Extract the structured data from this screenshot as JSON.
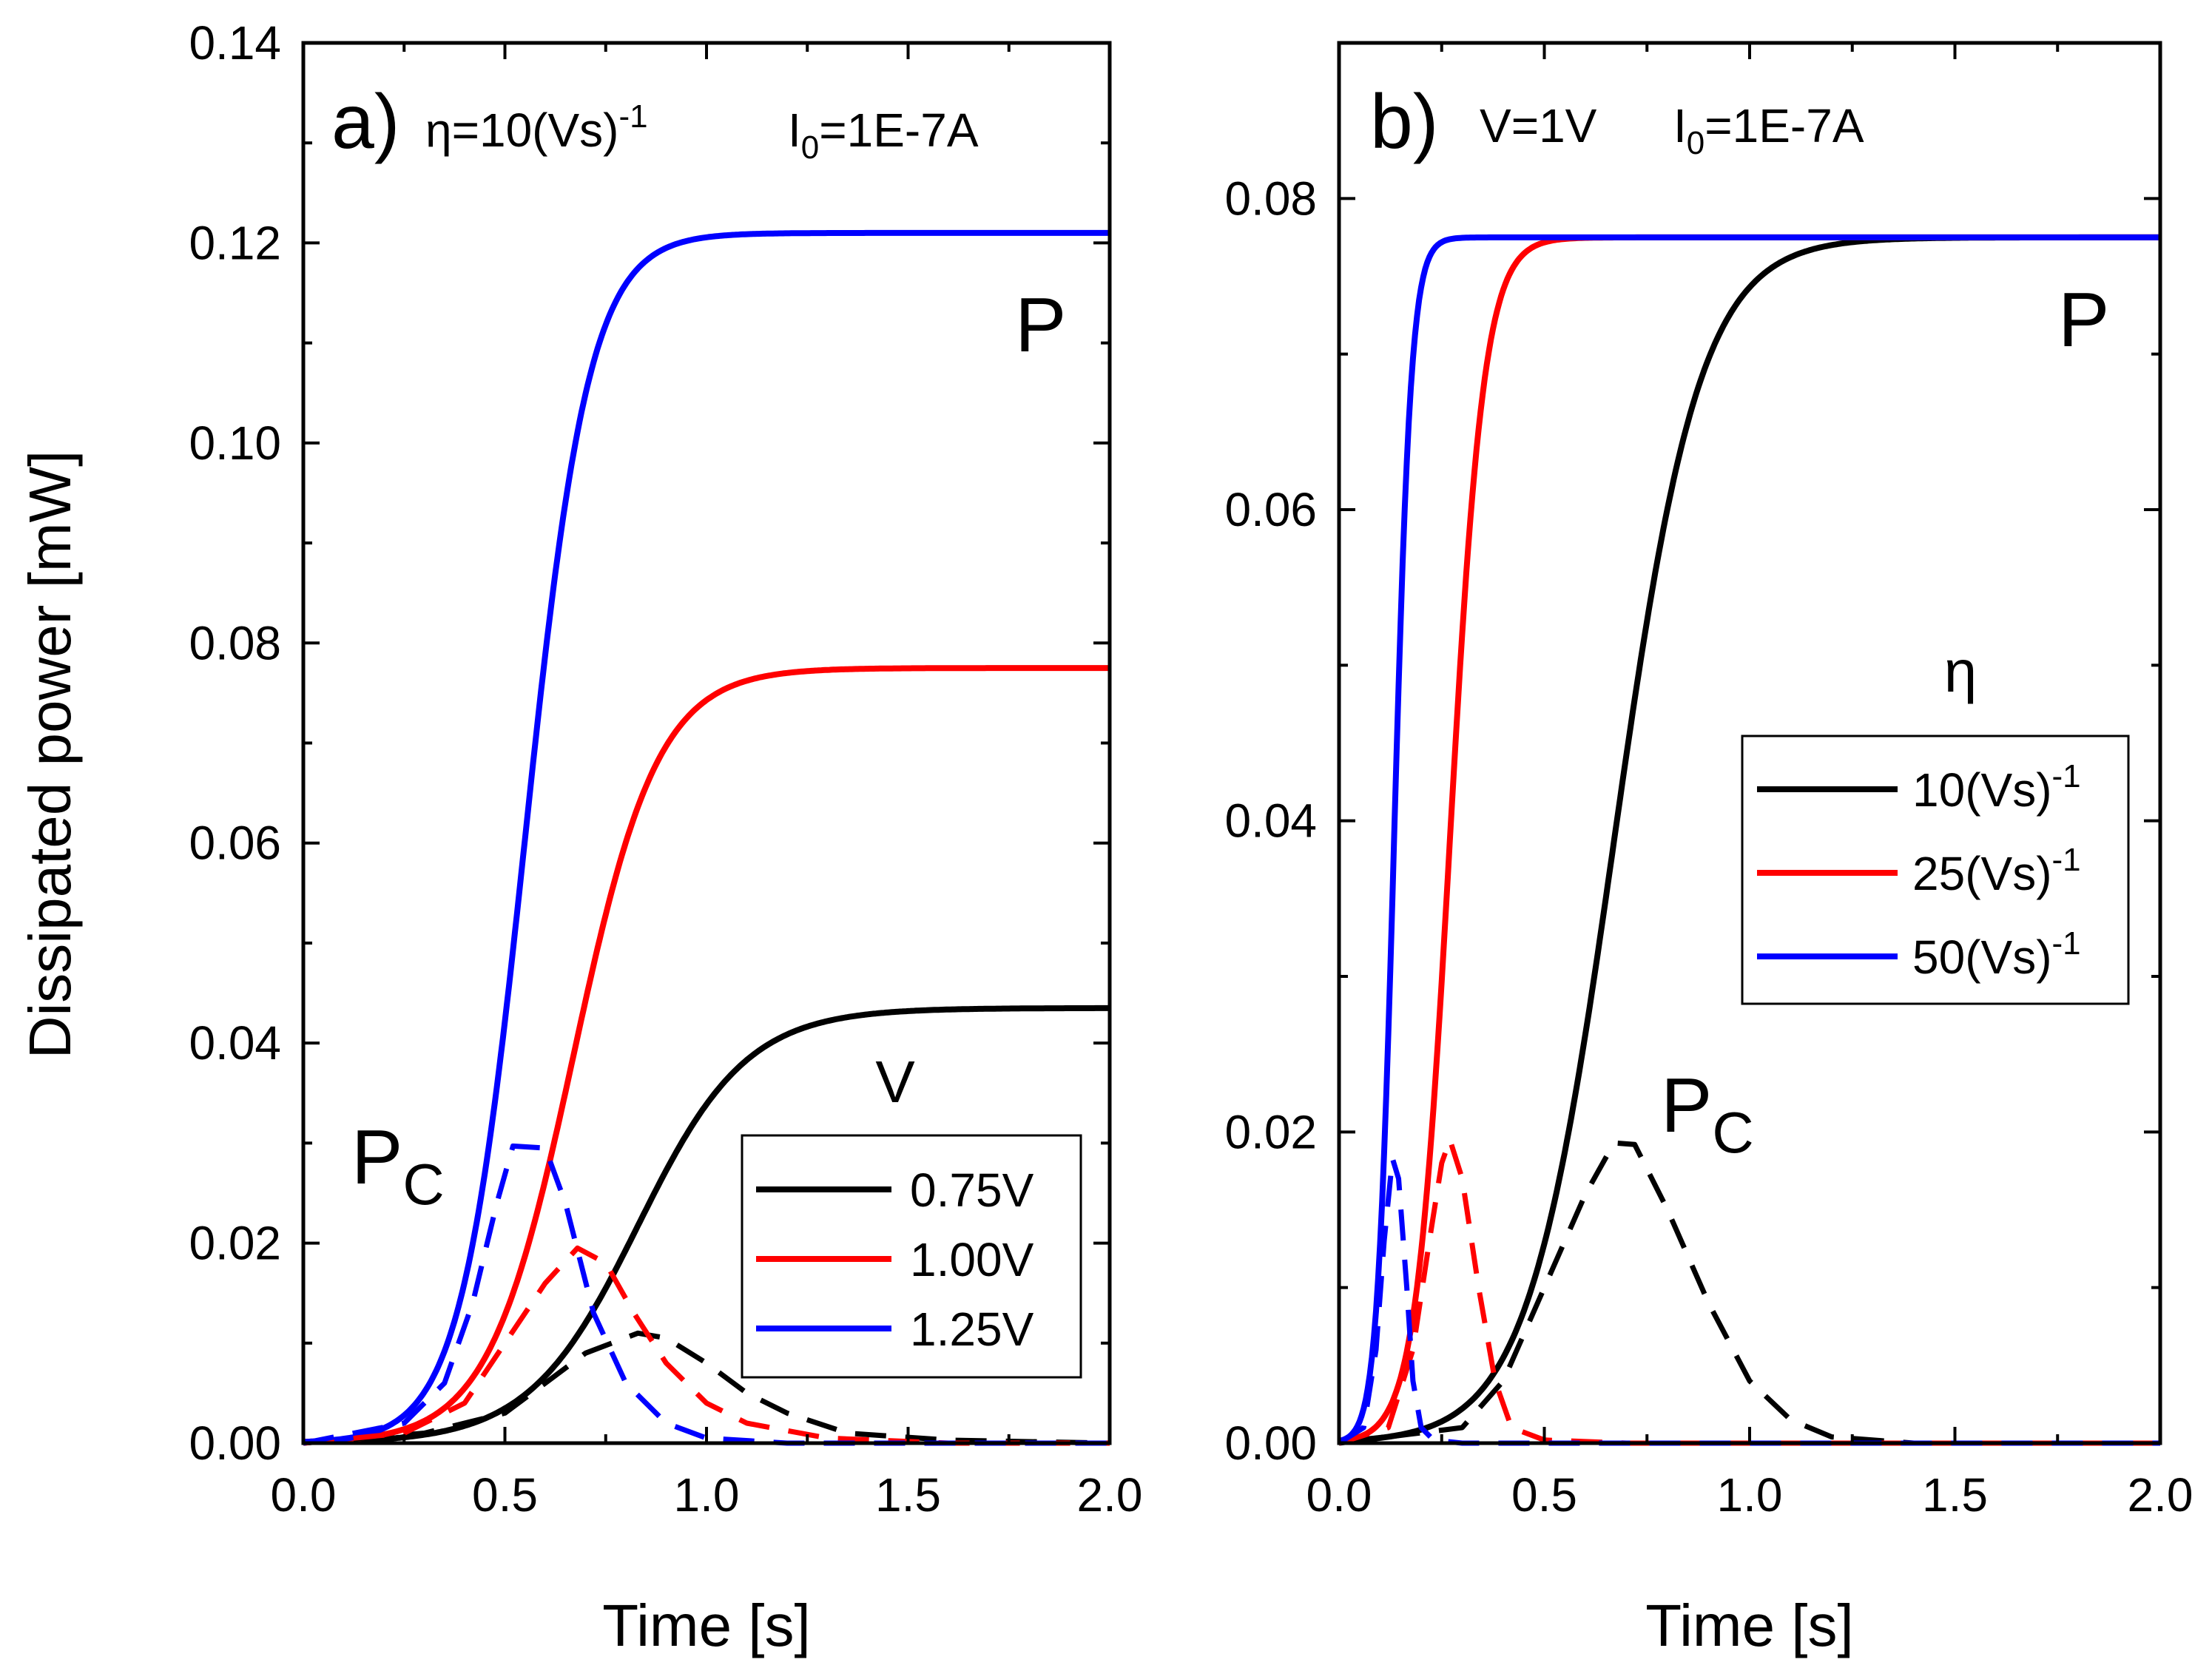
{
  "y_axis_label": "Dissipated power [mW]",
  "chart_data": [
    {
      "type": "line",
      "panel": "a)",
      "condition": {
        "eta_sym": "η",
        "eta_rest": "=10(Vs)",
        "eta_exp": "-1",
        "i_sym": "I",
        "i_sub": "0",
        "i_rest": "=1E-7A"
      },
      "xlabel": "Time [s]",
      "ylabel": "Dissipated power [mW]",
      "xlim": [
        0,
        2.0
      ],
      "ylim": [
        0,
        0.14
      ],
      "xticks": [
        "0.0",
        "0.5",
        "1.0",
        "1.5",
        "2.0"
      ],
      "yticks": [
        "0.00",
        "0.02",
        "0.04",
        "0.06",
        "0.08",
        "0.10",
        "0.12",
        "0.14"
      ],
      "label_P": "P",
      "label_Pc_main": "P",
      "label_Pc_sub": "C",
      "legend": {
        "title": "V",
        "entries": [
          "0.75V",
          "1.00V",
          "1.25V"
        ],
        "placement": "bottom-right"
      },
      "series": [
        {
          "name": "0.75V",
          "kind": "P",
          "color": "#000000",
          "plateau": 0.0435,
          "t_mid": 0.83,
          "width": 0.135
        },
        {
          "name": "1.00V",
          "kind": "P",
          "color": "#ff0000",
          "plateau": 0.0775,
          "t_mid": 0.67,
          "width": 0.105
        },
        {
          "name": "1.25V",
          "kind": "P",
          "color": "#0000ff",
          "plateau": 0.121,
          "t_mid": 0.55,
          "width": 0.08
        },
        {
          "name": "0.75V",
          "kind": "Pc",
          "color": "#000000",
          "points": [
            [
              0,
              0
            ],
            [
              0.3,
              0.001
            ],
            [
              0.5,
              0.003
            ],
            [
              0.6,
              0.006
            ],
            [
              0.7,
              0.009
            ],
            [
              0.83,
              0.011
            ],
            [
              0.9,
              0.0105
            ],
            [
              1.0,
              0.008
            ],
            [
              1.1,
              0.005
            ],
            [
              1.2,
              0.003
            ],
            [
              1.35,
              0.001
            ],
            [
              1.6,
              0.0003
            ],
            [
              2.0,
              0
            ]
          ]
        },
        {
          "name": "1.00V",
          "kind": "Pc",
          "color": "#ff0000",
          "points": [
            [
              0,
              0
            ],
            [
              0.25,
              0.001
            ],
            [
              0.4,
              0.004
            ],
            [
              0.5,
              0.01
            ],
            [
              0.6,
              0.016
            ],
            [
              0.68,
              0.0195
            ],
            [
              0.75,
              0.018
            ],
            [
              0.82,
              0.013
            ],
            [
              0.9,
              0.008
            ],
            [
              1.0,
              0.004
            ],
            [
              1.1,
              0.002
            ],
            [
              1.3,
              0.0005
            ],
            [
              1.6,
              0
            ],
            [
              2.0,
              0
            ]
          ]
        },
        {
          "name": "1.25V",
          "kind": "Pc",
          "color": "#0000ff",
          "points": [
            [
              0,
              0
            ],
            [
              0.25,
              0.002
            ],
            [
              0.35,
              0.006
            ],
            [
              0.42,
              0.014
            ],
            [
              0.48,
              0.024
            ],
            [
              0.52,
              0.0297
            ],
            [
              0.6,
              0.0295
            ],
            [
              0.65,
              0.024
            ],
            [
              0.72,
              0.013
            ],
            [
              0.8,
              0.006
            ],
            [
              0.9,
              0.002
            ],
            [
              1.0,
              0.0005
            ],
            [
              1.2,
              0
            ],
            [
              2.0,
              0
            ]
          ]
        }
      ]
    },
    {
      "type": "line",
      "panel": "b)",
      "condition": {
        "v_text": "V=1V",
        "i_sym": "I",
        "i_sub": "0",
        "i_rest": "=1E-7A"
      },
      "xlabel": "Time [s]",
      "ylabel": "Dissipated power [mW]",
      "xlim": [
        0,
        2.0
      ],
      "ylim": [
        0,
        0.09
      ],
      "xticks": [
        "0.0",
        "0.5",
        "1.0",
        "1.5",
        "2.0"
      ],
      "yticks": [
        "0.00",
        "0.02",
        "0.04",
        "0.06",
        "0.08"
      ],
      "label_P": "P",
      "label_Pc_main": "P",
      "label_Pc_sub": "C",
      "legend": {
        "title": "η",
        "entries": [
          {
            "main": "10(Vs)",
            "exp": "-1"
          },
          {
            "main": "25(Vs)",
            "exp": "-1"
          },
          {
            "main": "50(Vs)",
            "exp": "-1"
          }
        ],
        "placement": "right"
      },
      "series": [
        {
          "name": "10(Vs)-1",
          "kind": "P",
          "color": "#000000",
          "plateau": 0.0775,
          "t_mid": 0.67,
          "width": 0.105
        },
        {
          "name": "25(Vs)-1",
          "kind": "P",
          "color": "#ff0000",
          "plateau": 0.0775,
          "t_mid": 0.27,
          "width": 0.042
        },
        {
          "name": "50(Vs)-1",
          "kind": "P",
          "color": "#0000ff",
          "plateau": 0.0775,
          "t_mid": 0.134,
          "width": 0.021
        },
        {
          "name": "10(Vs)-1",
          "kind": "Pc",
          "color": "#000000",
          "points": [
            [
              0,
              0
            ],
            [
              0.3,
              0.001
            ],
            [
              0.4,
              0.004
            ],
            [
              0.5,
              0.01
            ],
            [
              0.6,
              0.016
            ],
            [
              0.67,
              0.0193
            ],
            [
              0.72,
              0.0192
            ],
            [
              0.8,
              0.015
            ],
            [
              0.9,
              0.009
            ],
            [
              1.0,
              0.004
            ],
            [
              1.1,
              0.0015
            ],
            [
              1.2,
              0.0004
            ],
            [
              1.4,
              0
            ],
            [
              2.0,
              0
            ]
          ]
        },
        {
          "name": "25(Vs)-1",
          "kind": "Pc",
          "color": "#ff0000",
          "points": [
            [
              0,
              0
            ],
            [
              0.12,
              0.001
            ],
            [
              0.18,
              0.006
            ],
            [
              0.22,
              0.013
            ],
            [
              0.25,
              0.018
            ],
            [
              0.27,
              0.0195
            ],
            [
              0.3,
              0.017
            ],
            [
              0.34,
              0.01
            ],
            [
              0.38,
              0.004
            ],
            [
              0.42,
              0.001
            ],
            [
              0.5,
              0.0002
            ],
            [
              0.7,
              0
            ],
            [
              2.0,
              0
            ]
          ]
        },
        {
          "name": "50(Vs)-1",
          "kind": "Pc",
          "color": "#0000ff",
          "points": [
            [
              0,
              0
            ],
            [
              0.06,
              0.001
            ],
            [
              0.09,
              0.006
            ],
            [
              0.11,
              0.013
            ],
            [
              0.13,
              0.0183
            ],
            [
              0.145,
              0.017
            ],
            [
              0.165,
              0.01
            ],
            [
              0.18,
              0.004
            ],
            [
              0.2,
              0.001
            ],
            [
              0.23,
              0.0002
            ],
            [
              0.3,
              0
            ],
            [
              2.0,
              0
            ]
          ]
        }
      ]
    }
  ]
}
